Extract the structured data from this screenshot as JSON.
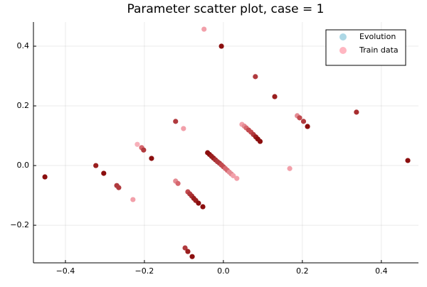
{
  "chart_data": {
    "type": "scatter",
    "title": "Parameter scatter plot, case = 1",
    "xlim": [
      -0.481,
      0.494
    ],
    "ylim": [
      -0.326,
      0.481
    ],
    "xticks": [
      {
        "value": -0.4,
        "label": "−0.4"
      },
      {
        "value": -0.2,
        "label": "−0.2"
      },
      {
        "value": 0,
        "label": "0.0"
      },
      {
        "value": 0.2,
        "label": "0.2"
      },
      {
        "value": 0.4,
        "label": "0.4"
      }
    ],
    "yticks": [
      {
        "value": -0.2,
        "label": "−0.2"
      },
      {
        "value": 0,
        "label": "0.0"
      },
      {
        "value": 0.2,
        "label": "0.2"
      },
      {
        "value": 0.4,
        "label": "0.4"
      }
    ],
    "grid": true,
    "legend": "top-right",
    "series": [
      {
        "name": "Evolution",
        "color": "#add8e6",
        "x": [],
        "y": []
      },
      {
        "name": "Train data",
        "color": "#ffb6c1",
        "x": [
          -0.049,
          -0.005,
          0.081,
          0.13,
          0.337,
          0.467,
          -0.452,
          -0.323,
          -0.303,
          -0.27,
          -0.265,
          -0.229,
          -0.218,
          -0.207,
          -0.202,
          -0.182,
          -0.121,
          -0.101,
          -0.121,
          -0.115,
          -0.09,
          -0.085,
          -0.08,
          -0.075,
          -0.07,
          -0.063,
          -0.052,
          -0.097,
          -0.09,
          -0.079,
          0.034,
          0.168,
          0.187,
          0.193,
          0.203,
          0.213,
          0.047,
          0.053,
          0.058,
          0.064,
          0.07,
          0.076,
          0.082,
          0.087,
          0.093,
          -0.04,
          -0.035,
          -0.03,
          -0.025,
          -0.02,
          -0.015,
          -0.01,
          -0.005,
          0.0,
          0.005,
          0.01,
          0.015,
          0.02,
          0.025
        ],
        "y": [
          0.457,
          0.4,
          0.298,
          0.231,
          0.179,
          0.017,
          -0.038,
          0.0,
          -0.026,
          -0.067,
          -0.074,
          -0.114,
          0.071,
          0.06,
          0.052,
          0.024,
          0.148,
          0.124,
          -0.052,
          -0.06,
          -0.088,
          -0.095,
          -0.102,
          -0.11,
          -0.117,
          -0.126,
          -0.138,
          -0.276,
          -0.288,
          -0.305,
          -0.043,
          -0.01,
          0.167,
          0.16,
          0.148,
          0.131,
          0.138,
          0.132,
          0.126,
          0.119,
          0.112,
          0.104,
          0.096,
          0.089,
          0.081,
          0.043,
          0.037,
          0.031,
          0.025,
          0.019,
          0.013,
          0.008,
          0.002,
          -0.004,
          -0.01,
          -0.016,
          -0.022,
          -0.028,
          -0.034
        ],
        "colors": [
          "#f2a0aa",
          "#8b0e0e",
          "#b03a3e",
          "#9a1e1e",
          "#a82e30",
          "#8b0e0e",
          "#8b0e0e",
          "#9a1e1e",
          "#8b0e0e",
          "#b03a3e",
          "#b03a3e",
          "#f2a0aa",
          "#f7b0ba",
          "#d6676e",
          "#b03a3e",
          "#8b0e0e",
          "#b03a3e",
          "#f2a0aa",
          "#e48b93",
          "#d6676e",
          "#c24a4f",
          "#b03a3e",
          "#a82e30",
          "#9a1e1e",
          "#9a1e1e",
          "#8b0e0e",
          "#8b0e0e",
          "#b03a3e",
          "#9a1e1e",
          "#8b0e0e",
          "#f2a0aa",
          "#f2a0aa",
          "#e48b93",
          "#c24a4f",
          "#b03a3e",
          "#8b0e0e",
          "#f2a0aa",
          "#e48b93",
          "#d6676e",
          "#c24a4f",
          "#c24a4f",
          "#b03a3e",
          "#9a1e1e",
          "#8b0e0e",
          "#8b0e0e",
          "#8b0e0e",
          "#8b0e0e",
          "#9a1e1e",
          "#9a1e1e",
          "#a82e30",
          "#b03a3e",
          "#b03a3e",
          "#c24a4f",
          "#c24a4f",
          "#d6676e",
          "#d6676e",
          "#e48b93",
          "#e48b93",
          "#f2a0aa"
        ]
      }
    ]
  }
}
